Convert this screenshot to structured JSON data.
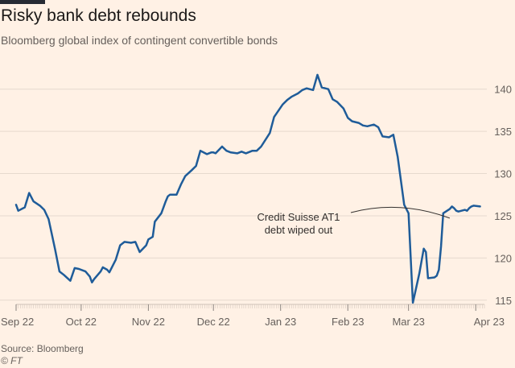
{
  "header": {
    "title": "Risky bank debt rebounds",
    "subtitle": "Bloomberg global index of contingent convertible bonds"
  },
  "footer": {
    "source": "Source: Bloomberg",
    "credit": "© FT"
  },
  "colors": {
    "background": "#fff1e5",
    "line": "#1f5c99",
    "grid": "#e6d9ce",
    "text": "#66605c"
  },
  "chart_data": {
    "type": "line",
    "title": "Risky bank debt rebounds",
    "subtitle": "Bloomberg global index of contingent convertible bonds",
    "xlabel": "",
    "ylabel": "",
    "y_axis_side": "right",
    "ylim": [
      114.5,
      141.5
    ],
    "yticks": [
      115,
      120,
      125,
      130,
      135,
      140
    ],
    "xlim": [
      "2022-09-01",
      "2023-04-05"
    ],
    "xticks": [
      {
        "label": "Sep 22",
        "date": "2022-09-01"
      },
      {
        "label": "Oct 22",
        "date": "2022-10-01"
      },
      {
        "label": "Nov 22",
        "date": "2022-11-01"
      },
      {
        "label": "Dec 22",
        "date": "2022-12-01"
      },
      {
        "label": "Jan 23",
        "date": "2023-01-01"
      },
      {
        "label": "Feb 23",
        "date": "2023-02-01"
      },
      {
        "label": "Mar 23",
        "date": "2023-03-01"
      },
      {
        "label": "Apr 23",
        "date": "2023-04-01"
      }
    ],
    "grid": true,
    "series": [
      {
        "x": [
          "2022-09-01",
          "2022-09-02",
          "2022-09-05",
          "2022-09-07",
          "2022-09-09",
          "2022-09-12",
          "2022-09-14",
          "2022-09-16",
          "2022-09-19",
          "2022-09-21",
          "2022-09-23",
          "2022-09-26",
          "2022-09-28",
          "2022-09-30",
          "2022-10-03",
          "2022-10-05",
          "2022-10-06",
          "2022-10-07",
          "2022-10-10",
          "2022-10-11",
          "2022-10-13",
          "2022-10-14",
          "2022-10-17",
          "2022-10-19",
          "2022-10-21",
          "2022-10-24",
          "2022-10-26",
          "2022-10-28",
          "2022-10-31",
          "2022-11-01",
          "2022-11-03",
          "2022-11-04",
          "2022-11-07",
          "2022-11-09",
          "2022-11-10",
          "2022-11-11",
          "2022-11-14",
          "2022-11-16",
          "2022-11-18",
          "2022-11-21",
          "2022-11-23",
          "2022-11-25",
          "2022-11-28",
          "2022-11-30",
          "2022-12-01",
          "2022-12-02",
          "2022-12-05",
          "2022-12-07",
          "2022-12-09",
          "2022-12-12",
          "2022-12-14",
          "2022-12-16",
          "2022-12-19",
          "2022-12-21",
          "2022-12-23",
          "2022-12-27",
          "2022-12-29",
          "2023-01-02",
          "2023-01-04",
          "2023-01-06",
          "2023-01-09",
          "2023-01-11",
          "2023-01-13",
          "2023-01-16",
          "2023-01-18",
          "2023-01-20",
          "2023-01-23",
          "2023-01-25",
          "2023-01-27",
          "2023-01-30",
          "2023-02-01",
          "2023-02-03",
          "2023-02-06",
          "2023-02-08",
          "2023-02-10",
          "2023-02-13",
          "2023-02-15",
          "2023-02-17",
          "2023-02-20",
          "2023-02-22",
          "2023-02-24",
          "2023-02-27",
          "2023-03-01",
          "2023-03-03",
          "2023-03-06",
          "2023-03-08",
          "2023-03-09",
          "2023-03-10",
          "2023-03-13",
          "2023-03-14",
          "2023-03-15",
          "2023-03-16",
          "2023-03-17",
          "2023-03-20",
          "2023-03-21",
          "2023-03-22",
          "2023-03-23",
          "2023-03-24",
          "2023-03-27",
          "2023-03-28",
          "2023-03-29",
          "2023-03-30",
          "2023-03-31",
          "2023-04-03"
        ],
        "y": [
          126.3,
          125.6,
          126.0,
          127.7,
          126.7,
          126.2,
          125.7,
          124.6,
          121.0,
          118.4,
          118.0,
          117.3,
          118.8,
          118.7,
          118.4,
          117.8,
          117.1,
          117.5,
          118.4,
          118.9,
          118.6,
          118.3,
          119.8,
          121.5,
          121.9,
          121.8,
          121.9,
          120.7,
          121.5,
          122.2,
          122.5,
          124.3,
          125.3,
          126.7,
          127.3,
          127.5,
          127.5,
          128.7,
          129.7,
          130.4,
          130.9,
          132.7,
          132.3,
          132.5,
          132.5,
          132.4,
          133.2,
          132.7,
          132.5,
          132.4,
          132.6,
          132.4,
          132.7,
          132.7,
          133.2,
          134.8,
          136.7,
          138.2,
          138.7,
          139.1,
          139.5,
          139.9,
          140.1,
          139.9,
          141.7,
          140.2,
          140.0,
          138.8,
          138.5,
          137.7,
          136.6,
          136.2,
          136.0,
          135.7,
          135.6,
          135.8,
          135.5,
          134.4,
          134.3,
          134.6,
          132.0,
          126.3,
          125.3,
          114.7,
          118.2,
          121.1,
          120.7,
          117.6,
          117.7,
          117.9,
          118.6,
          121.4,
          125.3,
          125.8,
          126.1,
          125.9,
          125.6,
          125.5,
          125.7,
          125.6,
          125.9,
          126.1,
          126.2,
          126.1
        ]
      }
    ],
    "annotations": [
      {
        "text": "Credit Suisse AT1",
        "line2": "debt wiped out",
        "date": "2023-03-20",
        "value": 125.0
      }
    ]
  }
}
